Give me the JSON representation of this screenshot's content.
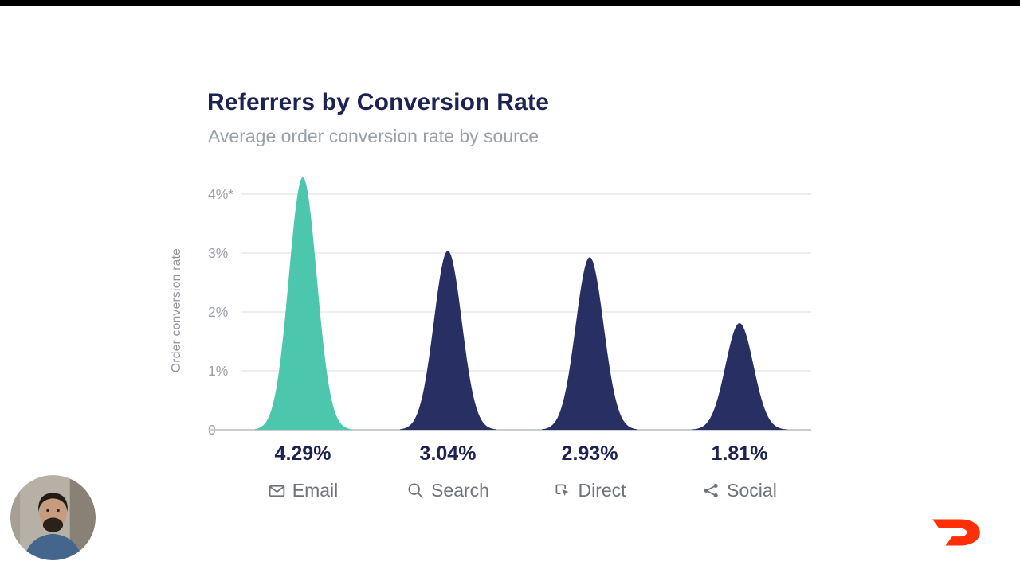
{
  "chart_data": {
    "type": "area",
    "title": "Referrers by Conversion Rate",
    "subtitle": "Average order conversion rate by source",
    "ylabel": "Order conversion rate",
    "yticks": [
      "4%*",
      "3%",
      "2%",
      "1%",
      "0"
    ],
    "ylim": [
      0,
      4.5
    ],
    "grid": true,
    "categories": [
      "Email",
      "Search",
      "Direct",
      "Social"
    ],
    "values": [
      4.29,
      3.04,
      2.93,
      1.81
    ],
    "value_labels": [
      "4.29%",
      "3.04%",
      "2.93%",
      "1.81%"
    ],
    "icons": [
      "email-icon",
      "search-icon",
      "direct-icon",
      "social-icon"
    ],
    "highlight_index": 0,
    "legend": "none",
    "colors": {
      "highlight": "#4cc7ae",
      "series": "#272f63",
      "title": "#1c2252",
      "muted_text": "#9aa0a8",
      "label_text": "#6d737b"
    }
  },
  "overlays": {
    "logo": {
      "name": "doordash-logo",
      "color": "#ff3008"
    }
  }
}
